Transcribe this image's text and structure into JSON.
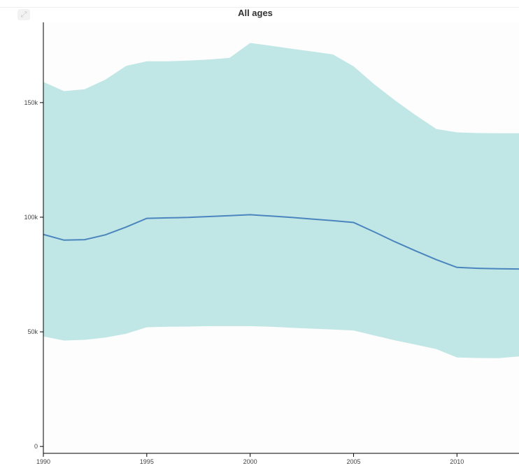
{
  "toolbar": {
    "expand_icon": "expand-icon"
  },
  "colors": {
    "band": "#c0e6e6",
    "line": "#4a86bd",
    "axis": "#000000",
    "plot_bg": "#fdfdfd"
  },
  "chart_data": {
    "type": "area",
    "title": "All ages",
    "xlabel": "",
    "ylabel": "",
    "xlim": [
      1990,
      2013
    ],
    "ylim": [
      -3000,
      185000
    ],
    "grid": false,
    "x_ticks": [
      1990,
      1995,
      2000,
      2005,
      2010
    ],
    "x_tick_labels": [
      "1990",
      "1995",
      "2000",
      "2005",
      "2010"
    ],
    "y_ticks": [
      0,
      50000,
      100000,
      150000
    ],
    "y_tick_labels": [
      "0",
      "50k",
      "100k",
      "150k"
    ],
    "x": [
      1990,
      1991,
      1992,
      1993,
      1994,
      1995,
      1996,
      1997,
      1998,
      1999,
      2000,
      2001,
      2002,
      2003,
      2004,
      2005,
      2006,
      2007,
      2008,
      2009,
      2010,
      2011,
      2012,
      2013
    ],
    "series": [
      {
        "role": "estimate",
        "values": [
          92500,
          90000,
          90200,
          92300,
          95700,
          99500,
          99700,
          99900,
          100300,
          100700,
          101100,
          100500,
          99900,
          99200,
          98500,
          97700,
          93600,
          89300,
          85300,
          81500,
          78100,
          77700,
          77500,
          77400
        ]
      },
      {
        "role": "upper",
        "values": [
          159000,
          155000,
          155800,
          160000,
          166000,
          168000,
          168000,
          168300,
          168800,
          169500,
          176000,
          174800,
          173500,
          172300,
          171000,
          165800,
          158000,
          151000,
          144500,
          138500,
          137000,
          136700,
          136600,
          136600
        ]
      },
      {
        "role": "lower",
        "values": [
          48000,
          46200,
          46500,
          47500,
          49200,
          52000,
          52200,
          52300,
          52500,
          52500,
          52500,
          52200,
          51800,
          51400,
          51000,
          50600,
          48400,
          46300,
          44400,
          42500,
          38800,
          38600,
          38500,
          39300
        ]
      }
    ]
  }
}
